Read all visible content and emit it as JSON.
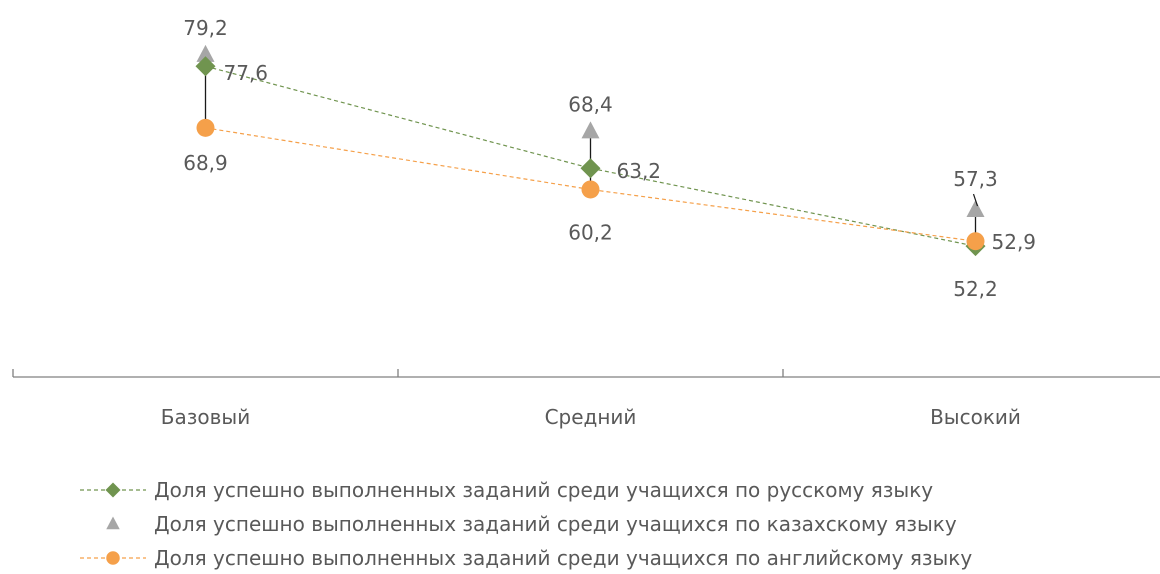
{
  "chart_data": {
    "type": "line",
    "categories": [
      "Базовый",
      "Средний",
      "Высокий"
    ],
    "ylim": [
      40,
      85
    ],
    "series": [
      {
        "name": "Доля успешно выполненных заданий среди учащихся по русскому языку",
        "values": [
          77.6,
          63.2,
          52.2
        ],
        "labels": [
          "77,6",
          "63,2",
          "52,2"
        ],
        "color": "#70944f",
        "marker": "diamond",
        "line": "dashed"
      },
      {
        "name": "Доля успешно выполненных заданий среди учащихся по казахскому языку",
        "values": [
          79.2,
          68.4,
          57.3
        ],
        "labels": [
          "79,2",
          "68,4",
          "57,3"
        ],
        "color": "#a6a6a6",
        "marker": "triangle",
        "line": "none"
      },
      {
        "name": "Доля успешно выполненных заданий среди учащихся по английскому языку",
        "values": [
          68.9,
          60.2,
          52.9
        ],
        "labels": [
          "68,9",
          "60,2",
          "52,9"
        ],
        "color": "#f5a04a",
        "marker": "circle",
        "line": "dashed"
      }
    ],
    "high_low_lines": true,
    "legend_position": "bottom",
    "grid": false
  }
}
